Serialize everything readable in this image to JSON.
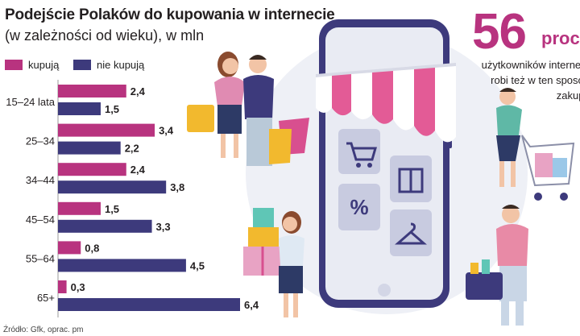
{
  "title": "Podejście Polaków do kupowania w internecie",
  "subtitle": "(w zależności od wieku), w mln",
  "source": "Źródło: Gfk, oprac. pm",
  "highlight": {
    "number": "56",
    "unit": "proc.",
    "lines": [
      "użytkowników internetu",
      "robi też w ten sposób",
      "zakupy"
    ]
  },
  "colors": {
    "buy": "#b8337f",
    "not_buy": "#3d3a7c",
    "accent": "#b8337f"
  },
  "chart_data": {
    "type": "bar",
    "orientation": "horizontal",
    "title": "Podejście Polaków do kupowania w internecie",
    "subtitle": "(w zależności od wieku), w mln",
    "categories": [
      "15–24 lata",
      "25–34",
      "34–44",
      "45–54",
      "55–64",
      "65+"
    ],
    "series": [
      {
        "name": "kupują",
        "color": "#b8337f",
        "values": [
          2.4,
          3.4,
          2.4,
          1.5,
          0.8,
          0.3
        ],
        "labels": [
          "2,4",
          "3,4",
          "2,4",
          "1,5",
          "0,8",
          "0,3"
        ]
      },
      {
        "name": "nie kupują",
        "color": "#3d3a7c",
        "values": [
          1.5,
          2.2,
          3.8,
          3.3,
          4.5,
          6.4
        ],
        "labels": [
          "1,5",
          "2,2",
          "3,8",
          "3,3",
          "4,5",
          "6,4"
        ]
      }
    ],
    "xlim": [
      0,
      6.4
    ],
    "grid": false,
    "legend": "top-left"
  }
}
